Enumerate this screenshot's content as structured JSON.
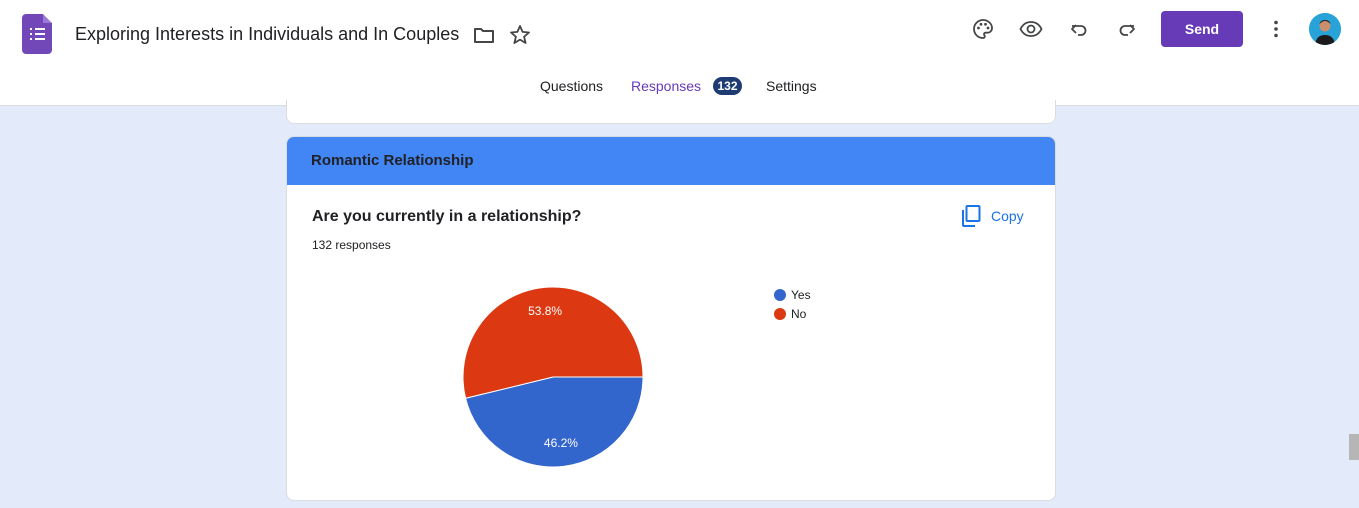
{
  "header": {
    "title": "Exploring Interests in Individuals and In Couples",
    "send_label": "Send",
    "icons": [
      "forms-logo-icon",
      "folder-icon",
      "star-icon",
      "palette-icon",
      "preview-eye-icon",
      "undo-icon",
      "redo-icon",
      "more-vert-icon"
    ]
  },
  "tabs": {
    "questions": "Questions",
    "responses": "Responses",
    "responses_count": "132",
    "settings": "Settings"
  },
  "section": {
    "title": "Romantic Relationship"
  },
  "question": {
    "text": "Are you currently in a relationship?",
    "responses": "132 responses",
    "copy_label": "Copy"
  },
  "chart_data": {
    "type": "pie",
    "categories": [
      "Yes",
      "No"
    ],
    "values": [
      46.2,
      53.8
    ],
    "value_labels": [
      "46.2%",
      "53.8%"
    ],
    "colors": [
      "#3366cc",
      "#dc3912"
    ],
    "legend": "right"
  }
}
